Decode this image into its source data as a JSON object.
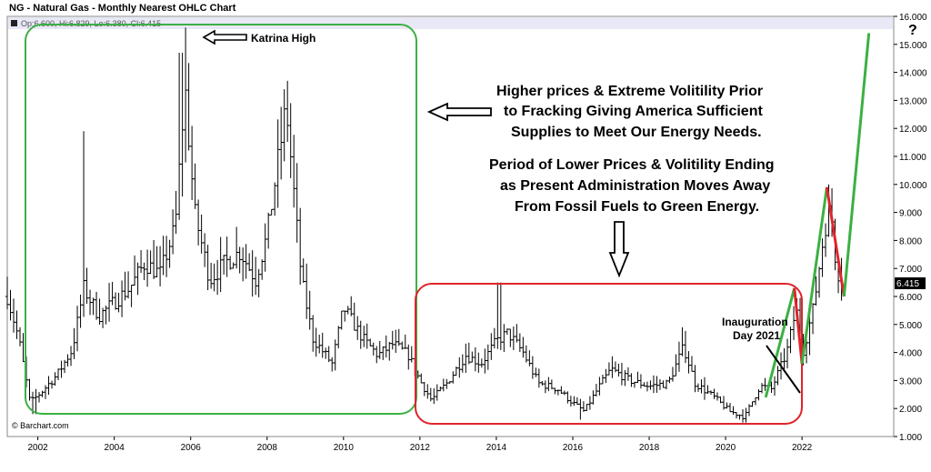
{
  "chart_data": {
    "type": "ohlc",
    "title": "NG - Natural Gas - Monthly Nearest OHLC Chart",
    "ohlc_readout": "Op:6.600, Hi:6.829, Lo:6.380, Cl:6.415",
    "last_value": "6.415",
    "credit": "© Barchart.com",
    "x_ticks": [
      "2002",
      "2004",
      "2006",
      "2008",
      "2010",
      "2012",
      "2014",
      "2016",
      "2018",
      "2020",
      "2022"
    ],
    "y_ticks": [
      "1.000",
      "2.000",
      "3.000",
      "4.000",
      "5.000",
      "6.000",
      "7.000",
      "8.000",
      "9.000",
      "10.000",
      "11.000",
      "12.000",
      "13.000",
      "14.000",
      "15.000",
      "16.000"
    ],
    "xlim": [
      2001.2,
      2024.4
    ],
    "ylim": [
      1.0,
      16.0
    ],
    "grid": false,
    "anchors": [
      [
        2001.2,
        6.0
      ],
      [
        2001.5,
        4.5
      ],
      [
        2001.8,
        2.2
      ],
      [
        2002.1,
        2.6
      ],
      [
        2002.5,
        3.2
      ],
      [
        2002.9,
        4.1
      ],
      [
        2003.2,
        6.3
      ],
      [
        2003.6,
        5.3
      ],
      [
        2004.0,
        5.8
      ],
      [
        2004.4,
        6.3
      ],
      [
        2004.8,
        7.2
      ],
      [
        2005.2,
        6.8
      ],
      [
        2005.6,
        8.5
      ],
      [
        2005.85,
        13.5
      ],
      [
        2006.1,
        9.0
      ],
      [
        2006.5,
        6.6
      ],
      [
        2006.9,
        7.2
      ],
      [
        2007.3,
        7.6
      ],
      [
        2007.7,
        6.6
      ],
      [
        2008.0,
        8.2
      ],
      [
        2008.5,
        12.8
      ],
      [
        2008.9,
        6.6
      ],
      [
        2009.2,
        4.5
      ],
      [
        2009.7,
        3.6
      ],
      [
        2010.0,
        5.6
      ],
      [
        2010.5,
        4.5
      ],
      [
        2010.9,
        3.9
      ],
      [
        2011.3,
        4.3
      ],
      [
        2011.7,
        3.9
      ],
      [
        2012.0,
        3.0
      ],
      [
        2012.3,
        2.3
      ],
      [
        2012.7,
        2.9
      ],
      [
        2013.2,
        3.9
      ],
      [
        2013.6,
        3.6
      ],
      [
        2014.0,
        4.4
      ],
      [
        2014.3,
        4.7
      ],
      [
        2014.7,
        4.0
      ],
      [
        2015.1,
        2.9
      ],
      [
        2015.6,
        2.7
      ],
      [
        2016.0,
        2.2
      ],
      [
        2016.3,
        1.9
      ],
      [
        2016.7,
        2.8
      ],
      [
        2017.0,
        3.4
      ],
      [
        2017.5,
        3.0
      ],
      [
        2018.0,
        2.8
      ],
      [
        2018.5,
        2.9
      ],
      [
        2018.9,
        4.2
      ],
      [
        2019.2,
        2.9
      ],
      [
        2019.7,
        2.4
      ],
      [
        2020.1,
        1.9
      ],
      [
        2020.5,
        1.7
      ],
      [
        2020.9,
        2.8
      ],
      [
        2021.2,
        2.7
      ],
      [
        2021.6,
        4.0
      ],
      [
        2021.85,
        5.6
      ],
      [
        2022.0,
        3.9
      ],
      [
        2022.3,
        5.6
      ],
      [
        2022.6,
        8.5
      ],
      [
        2022.75,
        9.2
      ],
      [
        2022.9,
        7.0
      ],
      [
        2023.1,
        6.42
      ]
    ],
    "annotations": {
      "katrina": "Katrina High",
      "box1_text": [
        "Higher prices & Extreme Volitility Prior",
        "to Fracking Giving America Sufficient",
        "Supplies to Meet Our Energy Needs."
      ],
      "box2_text": [
        "Period of Lower Prices & Volitility Ending",
        "as Present Administration Moves Away",
        "From Fossil Fuels to Green Energy."
      ],
      "inauguration": [
        "Inauguration",
        "Day 2021"
      ],
      "question": "?"
    },
    "trend_green": [
      [
        2021.05,
        2.4
      ],
      [
        2021.8,
        6.3
      ]
    ],
    "trend_red": [
      [
        2021.8,
        6.3
      ],
      [
        2022.0,
        3.6
      ]
    ],
    "trend_green2": [
      [
        2022.0,
        3.6
      ],
      [
        2022.65,
        9.9
      ]
    ],
    "trend_red2": [
      [
        2022.65,
        9.9
      ],
      [
        2023.1,
        6.0
      ]
    ],
    "trend_green3": [
      [
        2023.1,
        6.0
      ],
      [
        2023.75,
        15.4
      ]
    ],
    "colors": {
      "green_box": "#3cb043",
      "red_box": "#e0242b",
      "bars": "#000000",
      "header_band": "#e8e8f6"
    }
  }
}
